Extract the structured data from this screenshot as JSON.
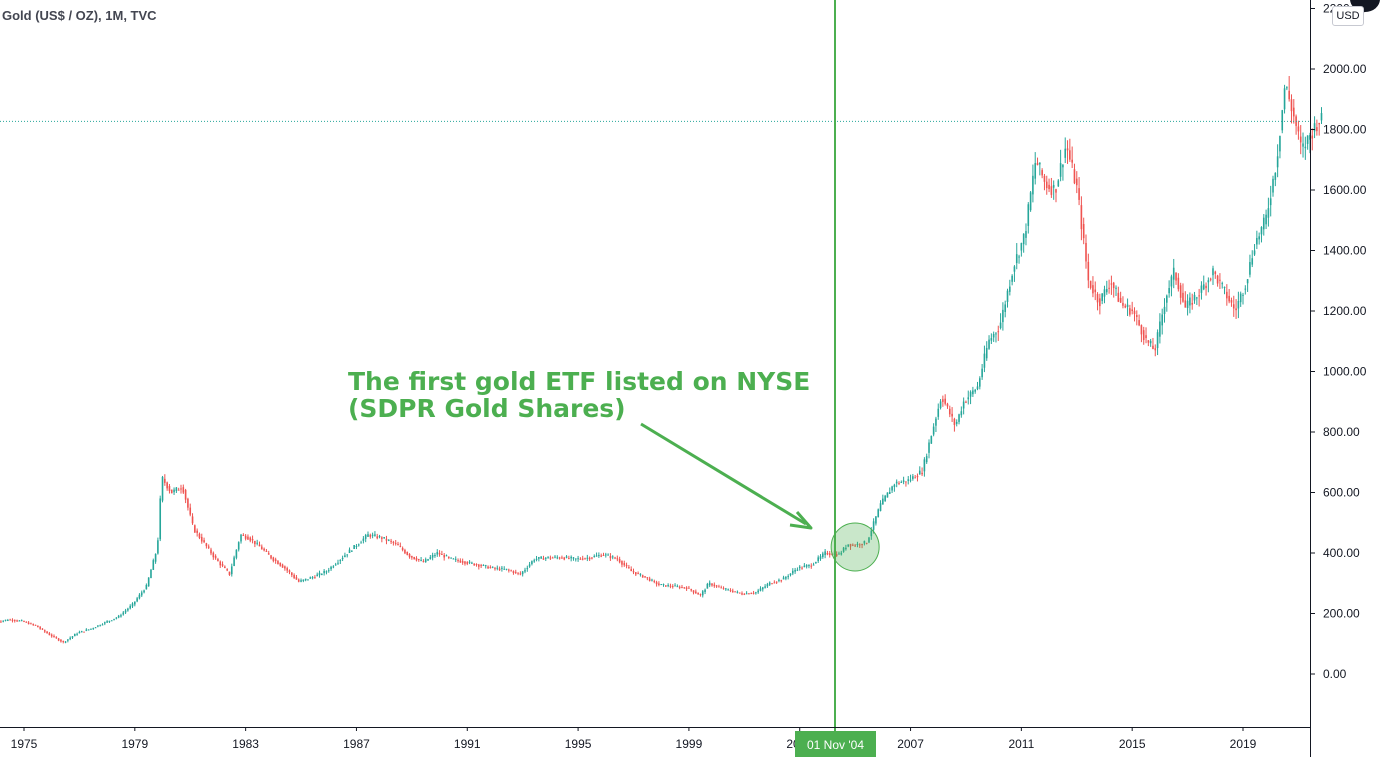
{
  "header": {
    "symbol": "Gold (US$ / OZ), 1M, TVC",
    "currency": "USD"
  },
  "annotation": {
    "line1": "The first gold ETF listed on NYSE",
    "line2": "(SDPR Gold Shares)",
    "color": "#4caf50"
  },
  "crosshair": {
    "date_label": "01 Nov '04",
    "price": 1827
  },
  "colors": {
    "up": "#26a69a",
    "down": "#ef5350",
    "axis_text": "#131722",
    "crosshair": "#4caf50",
    "price_line": "#26a69a"
  },
  "chart_data": {
    "type": "candlestick",
    "interval": "1M",
    "x_tick_labels": [
      "1975",
      "1979",
      "1983",
      "1987",
      "1991",
      "1995",
      "1999",
      "2003",
      "2007",
      "2011",
      "2015",
      "2019"
    ],
    "y_tick_labels": [
      "0.00",
      "200.00",
      "400.00",
      "600.00",
      "800.00",
      "1000.00",
      "1200.00",
      "1400.00",
      "1600.00",
      "1800.00",
      "2000.00",
      "2200.00"
    ],
    "y_ticks": [
      0,
      200,
      400,
      600,
      800,
      1000,
      1200,
      1400,
      1600,
      1800,
      2000,
      2200
    ],
    "ylim": [
      -180,
      2220
    ],
    "xlim": [
      1974,
      2022.2
    ],
    "series": [
      {
        "values": [
          [
            1974.0,
            170
          ],
          [
            1974.5,
            180
          ],
          [
            1975.0,
            175
          ],
          [
            1975.5,
            160
          ],
          [
            1976.0,
            130
          ],
          [
            1976.5,
            105
          ],
          [
            1977.0,
            135
          ],
          [
            1977.5,
            150
          ],
          [
            1978.0,
            170
          ],
          [
            1978.5,
            190
          ],
          [
            1979.0,
            230
          ],
          [
            1979.5,
            290
          ],
          [
            1979.9,
            420
          ],
          [
            1980.05,
            650
          ],
          [
            1980.4,
            600
          ],
          [
            1980.8,
            620
          ],
          [
            1981.2,
            480
          ],
          [
            1981.6,
            430
          ],
          [
            1982.0,
            380
          ],
          [
            1982.5,
            330
          ],
          [
            1982.9,
            460
          ],
          [
            1983.2,
            450
          ],
          [
            1983.6,
            420
          ],
          [
            1984.0,
            385
          ],
          [
            1984.5,
            350
          ],
          [
            1985.0,
            305
          ],
          [
            1985.5,
            320
          ],
          [
            1986.0,
            340
          ],
          [
            1986.5,
            380
          ],
          [
            1987.0,
            420
          ],
          [
            1987.5,
            460
          ],
          [
            1988.0,
            450
          ],
          [
            1988.5,
            430
          ],
          [
            1989.0,
            390
          ],
          [
            1989.5,
            370
          ],
          [
            1990.0,
            400
          ],
          [
            1990.5,
            380
          ],
          [
            1991.0,
            370
          ],
          [
            1991.5,
            360
          ],
          [
            1992.0,
            350
          ],
          [
            1992.5,
            345
          ],
          [
            1993.0,
            330
          ],
          [
            1993.5,
            380
          ],
          [
            1994.0,
            385
          ],
          [
            1994.5,
            385
          ],
          [
            1995.0,
            380
          ],
          [
            1995.5,
            385
          ],
          [
            1996.0,
            395
          ],
          [
            1996.5,
            380
          ],
          [
            1997.0,
            340
          ],
          [
            1997.5,
            320
          ],
          [
            1998.0,
            295
          ],
          [
            1998.5,
            290
          ],
          [
            1999.0,
            285
          ],
          [
            1999.5,
            260
          ],
          [
            1999.8,
            300
          ],
          [
            2000.2,
            285
          ],
          [
            2000.6,
            275
          ],
          [
            2001.0,
            265
          ],
          [
            2001.5,
            270
          ],
          [
            2002.0,
            300
          ],
          [
            2002.5,
            315
          ],
          [
            2003.0,
            350
          ],
          [
            2003.5,
            360
          ],
          [
            2004.0,
            400
          ],
          [
            2004.5,
            395
          ],
          [
            2004.83,
            430
          ],
          [
            2005.0,
            425
          ],
          [
            2005.5,
            435
          ],
          [
            2006.0,
            560
          ],
          [
            2006.5,
            630
          ],
          [
            2007.0,
            640
          ],
          [
            2007.5,
            670
          ],
          [
            2007.8,
            780
          ],
          [
            2008.2,
            920
          ],
          [
            2008.7,
            820
          ],
          [
            2009.0,
            900
          ],
          [
            2009.5,
            950
          ],
          [
            2009.9,
            1100
          ],
          [
            2010.3,
            1150
          ],
          [
            2010.8,
            1350
          ],
          [
            2011.2,
            1450
          ],
          [
            2011.6,
            1700
          ],
          [
            2011.95,
            1620
          ],
          [
            2012.3,
            1600
          ],
          [
            2012.7,
            1750
          ],
          [
            2013.1,
            1600
          ],
          [
            2013.5,
            1300
          ],
          [
            2013.9,
            1230
          ],
          [
            2014.3,
            1300
          ],
          [
            2014.7,
            1220
          ],
          [
            2015.1,
            1200
          ],
          [
            2015.6,
            1100
          ],
          [
            2015.9,
            1070
          ],
          [
            2016.3,
            1250
          ],
          [
            2016.6,
            1330
          ],
          [
            2017.0,
            1210
          ],
          [
            2017.5,
            1260
          ],
          [
            2018.0,
            1330
          ],
          [
            2018.5,
            1250
          ],
          [
            2018.8,
            1200
          ],
          [
            2019.2,
            1300
          ],
          [
            2019.5,
            1420
          ],
          [
            2019.9,
            1500
          ],
          [
            2020.3,
            1700
          ],
          [
            2020.6,
            1950
          ],
          [
            2020.9,
            1850
          ],
          [
            2021.2,
            1730
          ],
          [
            2021.5,
            1780
          ],
          [
            2021.8,
            1830
          ]
        ]
      }
    ],
    "grid": false,
    "legend": "none",
    "price_line": 1827,
    "annotation_circle": [
      2005.0,
      420
    ]
  }
}
